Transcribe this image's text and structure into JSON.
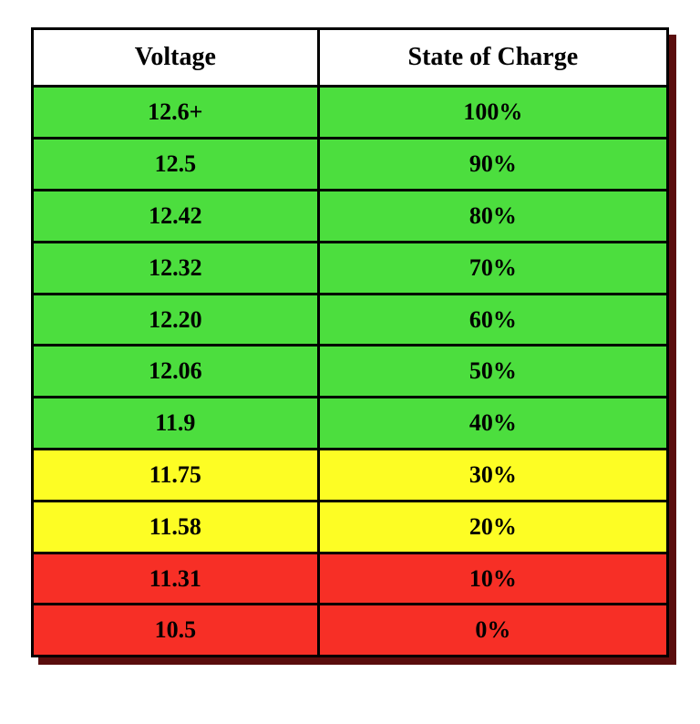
{
  "table": {
    "type": "table",
    "columns": [
      "Voltage",
      "State of Charge"
    ],
    "rows": [
      {
        "voltage": "12.6+",
        "soc": "100%",
        "bg": "#4cde3e"
      },
      {
        "voltage": "12.5",
        "soc": "90%",
        "bg": "#4cde3e"
      },
      {
        "voltage": "12.42",
        "soc": "80%",
        "bg": "#4cde3e"
      },
      {
        "voltage": "12.32",
        "soc": "70%",
        "bg": "#4cde3e"
      },
      {
        "voltage": "12.20",
        "soc": "60%",
        "bg": "#4cde3e"
      },
      {
        "voltage": "12.06",
        "soc": "50%",
        "bg": "#4cde3e"
      },
      {
        "voltage": "11.9",
        "soc": "40%",
        "bg": "#4cde3e"
      },
      {
        "voltage": "11.75",
        "soc": "30%",
        "bg": "#fdfd24"
      },
      {
        "voltage": "11.58",
        "soc": "20%",
        "bg": "#fdfd24"
      },
      {
        "voltage": "11.31",
        "soc": "10%",
        "bg": "#f72f26"
      },
      {
        "voltage": "10.5",
        "soc": "0%",
        "bg": "#f72f26"
      }
    ],
    "header_bg": "#ffffff",
    "border_color": "#000000",
    "border_width": 3,
    "shadow_color": "#5a0d0d",
    "font_family": "Times New Roman",
    "header_fontsize": 28,
    "cell_fontsize": 26,
    "col_widths_pct": [
      45,
      55
    ]
  }
}
